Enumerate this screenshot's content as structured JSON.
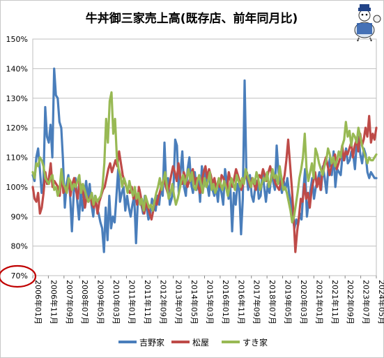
{
  "chart_data": {
    "type": "line",
    "title": "牛丼御三家売上高(既存店、前年同月比)",
    "xlabel": "",
    "ylabel": "",
    "ylim": [
      0.7,
      1.5
    ],
    "yticks": [
      "150%",
      "140%",
      "130%",
      "120%",
      "110%",
      "100%",
      "90%",
      "80%",
      "70%"
    ],
    "xtick_labels": [
      "2006年01月",
      "2006年11月",
      "2007年09月",
      "2008年07月",
      "2009年05月",
      "2010年03月",
      "2011年01月",
      "2011年11月",
      "2012年09月",
      "2013年07月",
      "2014年05月",
      "2015年03月",
      "2016年01月",
      "2016年11月",
      "2017年09月",
      "2018年07月",
      "2019年05月",
      "2020年03月",
      "2021年01月",
      "2021年11月",
      "2022年09月",
      "2023年07月",
      "2024年05月"
    ],
    "x_start": "2006-01",
    "x_end": "2024-05",
    "grid": true,
    "legend_position": "bottom",
    "highlight_tick": "70%",
    "highlight_color": "#c00000",
    "series": [
      {
        "name": "吉野家",
        "color": "#4a7ebb",
        "values": [
          1.04,
          1.02,
          1.1,
          1.13,
          1.06,
          0.98,
          1.01,
          1.27,
          1.17,
          1.15,
          1.21,
          1.1,
          1.4,
          1.31,
          1.3,
          1.22,
          1.2,
          1.09,
          0.93,
          1.01,
          1.04,
          0.97,
          0.85,
          0.98,
          1.03,
          0.95,
          0.89,
          0.99,
          0.92,
          0.97,
          1.02,
          0.96,
          1.01,
          0.94,
          0.9,
          0.97,
          0.93,
          0.91,
          0.88,
          0.86,
          0.78,
          0.93,
          0.82,
          0.97,
          0.86,
          0.9,
          0.88,
          0.97,
          1.06,
          0.95,
          0.98,
          1.0,
          0.92,
          0.97,
          0.93,
          0.9,
          0.94,
          0.97,
          0.81,
          0.95,
          0.99,
          0.94,
          0.91,
          0.97,
          0.93,
          0.89,
          0.91,
          0.96,
          0.94,
          0.92,
          0.97,
          0.94,
          1.0,
          0.97,
          1.15,
          1.0,
          1.03,
          0.94,
          0.96,
          0.99,
          1.16,
          1.14,
          0.98,
          1.05,
          1.12,
          1.0,
          0.97,
          1.06,
          1.1,
          1.01,
          0.98,
          1.05,
          0.99,
          1.03,
          0.95,
          1.07,
          1.0,
          1.05,
          1.01,
          0.97,
          1.04,
          0.99,
          0.97,
          1.0,
          0.95,
          1.02,
          0.98,
          0.94,
          1.06,
          1.02,
          0.96,
          1.0,
          0.85,
          0.98,
          0.94,
          1.01,
          0.99,
          0.84,
          0.96,
          1.36,
          1.05,
          0.99,
          1.04,
          0.97,
          0.95,
          1.0,
          1.02,
          0.96,
          0.97,
          1.05,
          1.0,
          0.95,
          1.01,
          0.98,
          1.04,
          1.02,
          0.99,
          1.14,
          1.05,
          1.01,
          0.98,
          1.02,
          0.99,
          1.03,
          0.98,
          0.95,
          0.9,
          0.86,
          0.89,
          0.87,
          0.91,
          0.89,
          0.99,
          1.06,
          0.9,
          0.95,
          0.99,
          1.03,
          0.96,
          1.0,
          1.02,
          1.05,
          0.99,
          1.07,
          1.03,
          0.98,
          1.06,
          1.1,
          1.04,
          1.12,
          1.0,
          1.06,
          1.05,
          1.04,
          1.11,
          1.09,
          1.13,
          1.08,
          1.09,
          1.12,
          1.11,
          1.06,
          1.15,
          1.17,
          1.11,
          1.08,
          1.13,
          1.11,
          1.05,
          1.03,
          1.05,
          1.04,
          1.03,
          1.03
        ]
      },
      {
        "name": "松屋",
        "color": "#be4b48",
        "values": [
          1.0,
          0.96,
          0.95,
          0.98,
          0.91,
          0.93,
          0.98,
          1.05,
          1.01,
          1.03,
          1.08,
          1.0,
          1.02,
          1.01,
          1.0,
          0.97,
          1.05,
          0.98,
          0.99,
          1.0,
          1.02,
          0.97,
          1.01,
          1.03,
          0.99,
          0.96,
          1.02,
          1.0,
          0.98,
          0.93,
          0.97,
          0.95,
          0.97,
          0.94,
          0.93,
          0.96,
          0.91,
          0.95,
          0.97,
          0.99,
          1.0,
          1.03,
          1.06,
          1.08,
          1.05,
          1.07,
          1.09,
          1.07,
          1.12,
          1.08,
          1.04,
          1.02,
          1.0,
          0.99,
          0.98,
          1.0,
          0.96,
          0.98,
          0.94,
          1.0,
          0.97,
          0.93,
          0.91,
          0.95,
          0.93,
          0.91,
          0.89,
          0.92,
          0.96,
          0.94,
          0.97,
          0.99,
          1.01,
          1.03,
          1.0,
          0.98,
          1.01,
          1.04,
          1.07,
          1.05,
          1.02,
          1.08,
          1.03,
          1.01,
          1.05,
          1.03,
          1.0,
          1.02,
          1.04,
          1.06,
          1.01,
          1.03,
          1.0,
          0.98,
          1.02,
          1.05,
          1.07,
          1.03,
          1.06,
          1.04,
          1.01,
          1.03,
          0.99,
          1.02,
          1.0,
          1.04,
          1.03,
          1.01,
          0.99,
          1.05,
          1.02,
          1.0,
          1.03,
          1.06,
          1.04,
          1.02,
          0.99,
          1.01,
          1.03,
          1.05,
          1.02,
          1.0,
          1.03,
          1.01,
          0.99,
          1.02,
          1.04,
          1.03,
          1.06,
          1.04,
          1.02,
          1.05,
          1.07,
          1.04,
          1.03,
          1.01,
          1.0,
          0.99,
          1.02,
          1.01,
          1.04,
          1.09,
          1.16,
          1.08,
          1.0,
          0.9,
          0.78,
          0.85,
          0.9,
          0.96,
          0.95,
          1.01,
          0.96,
          0.98,
          0.93,
          0.99,
          1.02,
          1.05,
          1.0,
          1.03,
          0.99,
          1.05,
          1.08,
          1.1,
          1.07,
          1.04,
          1.07,
          1.09,
          1.11,
          1.06,
          1.08,
          1.1,
          1.14,
          1.09,
          1.12,
          1.11,
          1.13,
          1.15,
          1.1,
          1.14,
          1.16,
          1.12,
          1.18,
          1.14,
          1.16,
          1.2,
          1.17,
          1.24,
          1.15,
          1.18,
          1.16,
          1.2
        ]
      },
      {
        "name": "すき家",
        "color": "#98b954",
        "values": [
          1.05,
          1.03,
          1.08,
          1.07,
          1.1,
          1.09,
          1.07,
          1.03,
          1.02,
          1.01,
          1.03,
          1.04,
          0.99,
          1.0,
          0.97,
          0.99,
          1.06,
          1.01,
          1.0,
          0.98,
          1.03,
          1.02,
          0.99,
          1.01,
          1.0,
          1.02,
          1.04,
          0.98,
          1.01,
          0.99,
          0.97,
          0.95,
          0.96,
          0.98,
          0.94,
          0.97,
          0.95,
          0.96,
          0.97,
          1.0,
          1.08,
          1.23,
          1.15,
          1.29,
          1.32,
          1.18,
          1.23,
          1.1,
          1.06,
          1.04,
          1.0,
          1.03,
          1.01,
          0.98,
          1.02,
          0.99,
          0.97,
          1.0,
          0.96,
          0.98,
          0.94,
          0.96,
          0.92,
          0.97,
          0.95,
          0.93,
          0.94,
          0.92,
          0.95,
          0.98,
          1.0,
          1.03,
          0.99,
          1.02,
          1.05,
          1.0,
          0.96,
          0.98,
          1.01,
          0.97,
          0.94,
          0.96,
          0.99,
          1.02,
          1.04,
          1.01,
          1.03,
          1.06,
          1.02,
          1.05,
          1.0,
          0.99,
          1.02,
          1.04,
          1.01,
          0.98,
          1.03,
          1.0,
          1.02,
          1.05,
          0.99,
          1.01,
          0.98,
          1.0,
          1.03,
          1.01,
          0.99,
          1.02,
          1.0,
          0.97,
          1.0,
          1.03,
          1.01,
          0.99,
          1.04,
          1.02,
          1.0,
          1.03,
          1.01,
          1.06,
          1.04,
          1.02,
          1.0,
          1.03,
          1.01,
          1.05,
          1.03,
          0.99,
          1.01,
          1.03,
          1.02,
          1.05,
          1.0,
          1.02,
          1.06,
          1.03,
          1.04,
          1.01,
          1.07,
          1.03,
          0.99,
          1.0,
          0.98,
          0.95,
          0.92,
          0.88,
          0.9,
          0.94,
          0.98,
          1.03,
          1.06,
          1.1,
          1.18,
          1.06,
          1.02,
          1.05,
          1.08,
          1.03,
          1.13,
          1.11,
          1.08,
          1.06,
          1.04,
          1.07,
          1.09,
          1.13,
          1.11,
          1.08,
          1.1,
          1.07,
          1.09,
          1.12,
          1.1,
          1.14,
          1.16,
          1.22,
          1.17,
          1.19,
          1.14,
          1.18,
          1.17,
          1.15,
          1.2,
          1.17,
          1.14,
          1.12,
          1.1,
          1.08,
          1.1,
          1.09,
          1.09,
          1.1,
          1.11
        ]
      }
    ]
  }
}
